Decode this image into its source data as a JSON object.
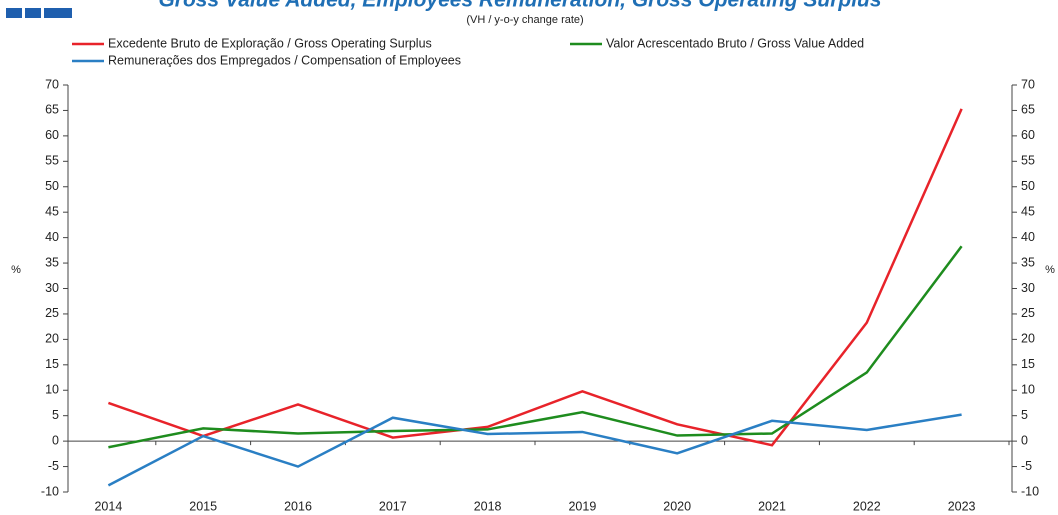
{
  "chart_data": {
    "type": "line",
    "title": "Gross Value Added, Employees Remuneration, Gross Operating Surplus",
    "subtitle": "(VH / y-o-y change rate)",
    "ylabel": "%",
    "y2label": "%",
    "categories": [
      "2014",
      "2015",
      "2016",
      "2017",
      "2018",
      "2019",
      "2020",
      "2021",
      "2022",
      "2023"
    ],
    "series": [
      {
        "name": "Excedente Bruto de Exploração / Gross Operating Surplus",
        "color": "#e8232a",
        "values": [
          7.5,
          1.0,
          7.2,
          0.7,
          2.8,
          9.8,
          3.3,
          -0.8,
          23.3,
          65.3
        ]
      },
      {
        "name": "Valor Acrescentado Bruto / Gross Value Added",
        "color": "#1e8c1e",
        "values": [
          -1.2,
          2.5,
          1.5,
          2.0,
          2.3,
          5.7,
          1.1,
          1.5,
          13.5,
          38.3
        ]
      },
      {
        "name": "Remunerações dos Empregados / Compensation of Employees",
        "color": "#2a7fc4",
        "values": [
          -8.7,
          1.0,
          -5.0,
          4.6,
          1.4,
          1.8,
          -2.4,
          4.0,
          2.2,
          5.2
        ]
      }
    ],
    "ylim": [
      -10,
      70
    ],
    "yticks": [
      -10,
      -5,
      0,
      5,
      10,
      15,
      20,
      25,
      30,
      35,
      40,
      45,
      50,
      55,
      60,
      65,
      70
    ],
    "y2lim": [
      -10,
      70
    ],
    "y2ticks": [
      -10,
      -5,
      0,
      5,
      10,
      15,
      20,
      25,
      30,
      35,
      40,
      45,
      50,
      55,
      60,
      65,
      70
    ],
    "grid": false
  }
}
